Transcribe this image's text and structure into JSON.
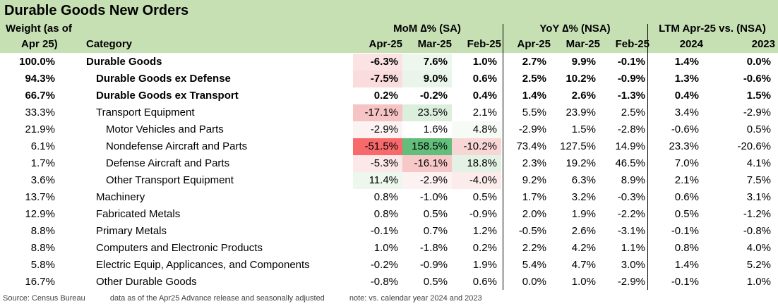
{
  "title": "Durable Goods New Orders",
  "headers": {
    "weight_line1": "Weight (as of",
    "weight_line2": "Apr 25)",
    "category": "Category",
    "mom_group": "MoM ∆% (SA)",
    "yoy_group": "YoY ∆% (NSA)",
    "ltm_group": "LTM Apr-25 vs. (NSA)",
    "mom_cols": [
      "Apr-25",
      "Mar-25",
      "Feb-25"
    ],
    "yoy_cols": [
      "Apr-25",
      "Mar-25",
      "Feb-25"
    ],
    "ltm_cols": [
      "2024",
      "2023"
    ]
  },
  "rows": [
    {
      "weight": "100.0%",
      "category": "Durable Goods",
      "bold": true,
      "indent": 0,
      "mom": [
        "-6.3%",
        "7.6%",
        "1.0%"
      ],
      "yoy": [
        "2.7%",
        "9.9%",
        "-0.1%"
      ],
      "ltm": [
        "1.4%",
        "0.0%"
      ],
      "mom_bg": [
        "#fbe3e3",
        "#eef7ee",
        "#ffffff"
      ]
    },
    {
      "weight": "94.3%",
      "category": "Durable Goods ex Defense",
      "bold": true,
      "indent": 1,
      "mom": [
        "-7.5%",
        "9.0%",
        "0.6%"
      ],
      "yoy": [
        "2.5%",
        "10.2%",
        "-0.9%"
      ],
      "ltm": [
        "1.3%",
        "-0.6%"
      ],
      "mom_bg": [
        "#fadcdc",
        "#e9f5ea",
        "#ffffff"
      ]
    },
    {
      "weight": "66.7%",
      "category": "Durable Goods ex Transport",
      "bold": true,
      "indent": 1,
      "mom": [
        "0.2%",
        "-0.2%",
        "0.4%"
      ],
      "yoy": [
        "1.4%",
        "2.6%",
        "-1.3%"
      ],
      "ltm": [
        "0.4%",
        "1.5%"
      ],
      "mom_bg": [
        "#ffffff",
        "#ffffff",
        "#ffffff"
      ]
    },
    {
      "weight": "33.3%",
      "category": "Transport Equipment",
      "bold": false,
      "indent": 1,
      "mom": [
        "-17.1%",
        "23.5%",
        "2.1%"
      ],
      "yoy": [
        "5.5%",
        "23.9%",
        "2.5%"
      ],
      "ltm": [
        "3.4%",
        "-2.9%"
      ],
      "mom_bg": [
        "#f6c4c4",
        "#dcefdd",
        "#ffffff"
      ]
    },
    {
      "weight": "21.9%",
      "category": "Motor Vehicles and Parts",
      "bold": false,
      "indent": 2,
      "mom": [
        "-2.9%",
        "1.6%",
        "4.8%"
      ],
      "yoy": [
        "-2.9%",
        "1.5%",
        "-2.8%"
      ],
      "ltm": [
        "-0.6%",
        "0.5%"
      ],
      "mom_bg": [
        "#fdf2f2",
        "#ffffff",
        "#f6fbf6"
      ]
    },
    {
      "weight": "6.1%",
      "category": "Nondefense Aircraft and Parts",
      "bold": false,
      "indent": 2,
      "mom": [
        "-51.5%",
        "158.5%",
        "-10.2%"
      ],
      "yoy": [
        "73.4%",
        "127.5%",
        "14.9%"
      ],
      "ltm": [
        "23.3%",
        "-20.6%"
      ],
      "mom_bg": [
        "#f8696b",
        "#63be7b",
        "#f9d6d6"
      ]
    },
    {
      "weight": "1.7%",
      "category": "Defense Aircraft and Parts",
      "bold": false,
      "indent": 2,
      "mom": [
        "-5.3%",
        "-16.1%",
        "18.8%"
      ],
      "yoy": [
        "2.3%",
        "19.2%",
        "46.5%"
      ],
      "ltm": [
        "7.0%",
        "4.1%"
      ],
      "mom_bg": [
        "#fce8e8",
        "#f7c8c8",
        "#e3f2e4"
      ]
    },
    {
      "weight": "3.6%",
      "category": "Other Transport Equipment",
      "bold": false,
      "indent": 2,
      "mom": [
        "11.4%",
        "-2.9%",
        "-4.0%"
      ],
      "yoy": [
        "9.2%",
        "6.3%",
        "8.9%"
      ],
      "ltm": [
        "2.1%",
        "7.5%"
      ],
      "mom_bg": [
        "#eef7ee",
        "#fdf2f2",
        "#fcebeb"
      ]
    },
    {
      "weight": "13.7%",
      "category": "Machinery",
      "bold": false,
      "indent": 1,
      "mom": [
        "0.8%",
        "-1.0%",
        "0.5%"
      ],
      "yoy": [
        "1.7%",
        "3.2%",
        "-0.3%"
      ],
      "ltm": [
        "0.6%",
        "3.1%"
      ],
      "mom_bg": [
        "#ffffff",
        "#ffffff",
        "#ffffff"
      ]
    },
    {
      "weight": "12.9%",
      "category": "Fabricated Metals",
      "bold": false,
      "indent": 1,
      "mom": [
        "0.8%",
        "0.5%",
        "-0.9%"
      ],
      "yoy": [
        "2.0%",
        "1.9%",
        "-2.2%"
      ],
      "ltm": [
        "0.5%",
        "-1.2%"
      ],
      "mom_bg": [
        "#ffffff",
        "#ffffff",
        "#ffffff"
      ]
    },
    {
      "weight": "8.8%",
      "category": "Primary Metals",
      "bold": false,
      "indent": 1,
      "mom": [
        "-0.1%",
        "0.7%",
        "1.2%"
      ],
      "yoy": [
        "-0.5%",
        "2.6%",
        "-3.1%"
      ],
      "ltm": [
        "-0.1%",
        "-0.8%"
      ],
      "mom_bg": [
        "#ffffff",
        "#ffffff",
        "#ffffff"
      ]
    },
    {
      "weight": "8.8%",
      "category": "Computers and Electronic Products",
      "bold": false,
      "indent": 1,
      "mom": [
        "1.0%",
        "-1.8%",
        "0.2%"
      ],
      "yoy": [
        "2.2%",
        "4.2%",
        "1.1%"
      ],
      "ltm": [
        "0.8%",
        "4.0%"
      ],
      "mom_bg": [
        "#ffffff",
        "#ffffff",
        "#ffffff"
      ]
    },
    {
      "weight": "5.8%",
      "category": "Electric Equip, Applicances, and Components",
      "bold": false,
      "indent": 1,
      "mom": [
        "-0.2%",
        "-0.9%",
        "1.9%"
      ],
      "yoy": [
        "5.4%",
        "4.7%",
        "3.0%"
      ],
      "ltm": [
        "1.4%",
        "5.2%"
      ],
      "mom_bg": [
        "#ffffff",
        "#ffffff",
        "#ffffff"
      ]
    },
    {
      "weight": "16.7%",
      "category": "Other Durable Goods",
      "bold": false,
      "indent": 1,
      "mom": [
        "-0.8%",
        "0.5%",
        "0.6%"
      ],
      "yoy": [
        "0.0%",
        "1.0%",
        "-2.9%"
      ],
      "ltm": [
        "-0.1%",
        "1.0%"
      ],
      "mom_bg": [
        "#ffffff",
        "#ffffff",
        "#ffffff"
      ]
    }
  ],
  "footer": {
    "source": "Source: Census Bureau",
    "note1": "data as of the Apr25 Advance release and seasonally adjusted",
    "note2": "note: vs. calendar year 2024 and 2023"
  }
}
